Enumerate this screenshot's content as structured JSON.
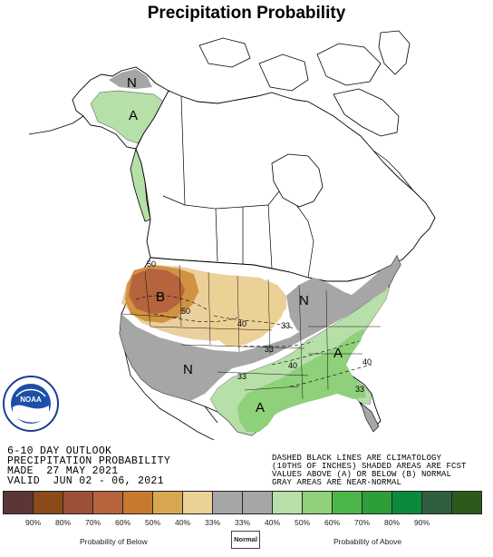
{
  "title": "Precipitation Probability",
  "outlook": {
    "line1": "6-10 DAY OUTLOOK",
    "line2": "PRECIPITATION PROBABILITY",
    "line3": "MADE  27 MAY 2021",
    "line4": "VALID  JUN 02 - 06, 2021"
  },
  "note": {
    "line1": "DASHED BLACK LINES ARE CLIMATOLOGY",
    "line2": "(10THS OF INCHES) SHADED AREAS ARE FCST",
    "line3": "VALUES ABOVE (A) OR BELOW (B) NORMAL",
    "line4": "GRAY AREAS ARE NEAR-NORMAL"
  },
  "logo_text": "NOAA",
  "map_labels": {
    "alaska_n": "N",
    "alaska_a": "A",
    "west_b": "B",
    "upper_midwest_n": "N",
    "southwest_n": "N",
    "south_a": "A",
    "southeast_a": "A",
    "contour_50a": "50",
    "contour_50b": "50",
    "contour_40a": "40",
    "contour_40b": "40",
    "contour_40c": "40",
    "contour_33a": "33",
    "contour_33b": "33",
    "contour_33c": "33",
    "contour_33d": "33"
  },
  "legend": {
    "colors": [
      "#5b3636",
      "#8b4a17",
      "#9d4f38",
      "#b5643d",
      "#c7792f",
      "#d8a851",
      "#ecd196",
      "#a6a6a6",
      "#a6a6a6",
      "#b7dfa8",
      "#8fd07b",
      "#4cb649",
      "#2e9e3b",
      "#0b8a3c",
      "#2e5f3e",
      "#2b5a1b"
    ],
    "ticks": [
      "90%",
      "80%",
      "70%",
      "60%",
      "50%",
      "40%",
      "33%",
      "33%",
      "40%",
      "50%",
      "60%",
      "70%",
      "80%",
      "90%"
    ],
    "below_label": "Probability of Below",
    "normal_label": "Normal",
    "above_label": "Probability of Above"
  }
}
